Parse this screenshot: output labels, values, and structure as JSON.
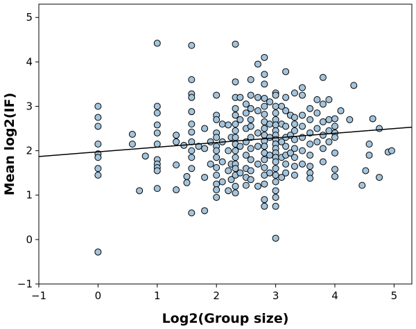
{
  "chart_data": {
    "type": "scatter",
    "title": "",
    "xlabel": "Log2(Group size)",
    "ylabel": "Mean log2(IF)",
    "xlim": [
      -1,
      5.3
    ],
    "ylim": [
      -1,
      5.3
    ],
    "x_ticks": [
      -1,
      0,
      1,
      2,
      3,
      4,
      5
    ],
    "y_ticks": [
      -1,
      0,
      1,
      2,
      3,
      4,
      5
    ],
    "x_tick_labels": [
      "−1",
      "0",
      "1",
      "2",
      "3",
      "4",
      "5"
    ],
    "y_tick_labels": [
      "−1",
      "0",
      "1",
      "2",
      "3",
      "4",
      "5"
    ],
    "grid": false,
    "marker_color": "#a4c4dc",
    "line_color": "#000000",
    "fit_line": {
      "x": [
        -1,
        5.3
      ],
      "y": [
        1.87,
        2.53
      ]
    },
    "points": [
      [
        0,
        3.0
      ],
      [
        0,
        2.75
      ],
      [
        0,
        2.55
      ],
      [
        0,
        2.15
      ],
      [
        0,
        1.93
      ],
      [
        0,
        1.85
      ],
      [
        0,
        1.6
      ],
      [
        0,
        1.45
      ],
      [
        0,
        -0.28
      ],
      [
        0.58,
        2.37
      ],
      [
        0.58,
        2.15
      ],
      [
        0.7,
        1.1
      ],
      [
        0.8,
        1.88
      ],
      [
        1,
        4.42
      ],
      [
        1,
        3.0
      ],
      [
        1,
        2.85
      ],
      [
        1,
        2.58
      ],
      [
        1,
        2.4
      ],
      [
        1,
        2.15
      ],
      [
        1,
        1.8
      ],
      [
        1,
        1.7
      ],
      [
        1,
        1.62
      ],
      [
        1,
        1.55
      ],
      [
        1,
        1.15
      ],
      [
        1.32,
        2.35
      ],
      [
        1.32,
        2.2
      ],
      [
        1.32,
        1.68
      ],
      [
        1.32,
        1.12
      ],
      [
        1.45,
        2.12
      ],
      [
        1.5,
        1.42
      ],
      [
        1.5,
        1.28
      ],
      [
        1.58,
        4.37
      ],
      [
        1.58,
        3.6
      ],
      [
        1.58,
        3.28
      ],
      [
        1.58,
        3.2
      ],
      [
        1.58,
        2.88
      ],
      [
        1.58,
        2.6
      ],
      [
        1.58,
        2.42
      ],
      [
        1.58,
        2.2
      ],
      [
        1.58,
        2.0
      ],
      [
        1.58,
        1.85
      ],
      [
        1.58,
        1.6
      ],
      [
        1.58,
        0.6
      ],
      [
        1.7,
        2.1
      ],
      [
        1.8,
        2.5
      ],
      [
        1.8,
        2.05
      ],
      [
        1.8,
        1.4
      ],
      [
        1.8,
        0.65
      ],
      [
        1.9,
        2.2
      ],
      [
        1.9,
        1.7
      ],
      [
        2,
        3.25
      ],
      [
        2,
        2.8
      ],
      [
        2,
        2.7
      ],
      [
        2,
        2.4
      ],
      [
        2,
        2.3
      ],
      [
        2,
        2.1
      ],
      [
        2,
        2.0
      ],
      [
        2,
        1.85
      ],
      [
        2,
        1.62
      ],
      [
        2,
        1.45
      ],
      [
        2,
        1.25
      ],
      [
        2,
        1.12
      ],
      [
        2,
        0.95
      ],
      [
        2.1,
        2.6
      ],
      [
        2.1,
        2.2
      ],
      [
        2.1,
        1.75
      ],
      [
        2.1,
        1.3
      ],
      [
        2.2,
        2.58
      ],
      [
        2.2,
        2.0
      ],
      [
        2.2,
        1.55
      ],
      [
        2.2,
        1.1
      ],
      [
        2.25,
        2.3
      ],
      [
        2.25,
        1.7
      ],
      [
        2.25,
        1.35
      ],
      [
        2.32,
        4.4
      ],
      [
        2.32,
        3.55
      ],
      [
        2.32,
        3.2
      ],
      [
        2.32,
        2.95
      ],
      [
        2.32,
        2.8
      ],
      [
        2.32,
        2.6
      ],
      [
        2.32,
        2.45
      ],
      [
        2.32,
        2.3
      ],
      [
        2.32,
        2.15
      ],
      [
        2.32,
        2.0
      ],
      [
        2.32,
        1.85
      ],
      [
        2.32,
        1.7
      ],
      [
        2.32,
        1.6
      ],
      [
        2.32,
        1.45
      ],
      [
        2.32,
        1.2
      ],
      [
        2.32,
        1.05
      ],
      [
        2.4,
        3.2
      ],
      [
        2.4,
        2.7
      ],
      [
        2.4,
        2.1
      ],
      [
        2.4,
        1.5
      ],
      [
        2.5,
        3.05
      ],
      [
        2.5,
        2.85
      ],
      [
        2.5,
        2.5
      ],
      [
        2.5,
        2.2
      ],
      [
        2.5,
        1.9
      ],
      [
        2.5,
        1.6
      ],
      [
        2.5,
        1.4
      ],
      [
        2.5,
        1.22
      ],
      [
        2.58,
        3.6
      ],
      [
        2.58,
        3.25
      ],
      [
        2.58,
        2.95
      ],
      [
        2.58,
        2.7
      ],
      [
        2.58,
        2.55
      ],
      [
        2.58,
        2.3
      ],
      [
        2.58,
        2.05
      ],
      [
        2.58,
        1.8
      ],
      [
        2.58,
        1.55
      ],
      [
        2.58,
        1.35
      ],
      [
        2.7,
        3.95
      ],
      [
        2.7,
        3.2
      ],
      [
        2.7,
        2.9
      ],
      [
        2.7,
        2.4
      ],
      [
        2.7,
        2.1
      ],
      [
        2.7,
        1.7
      ],
      [
        2.7,
        1.2
      ],
      [
        2.81,
        4.1
      ],
      [
        2.81,
        3.72
      ],
      [
        2.81,
        3.5
      ],
      [
        2.81,
        3.18
      ],
      [
        2.81,
        3.0
      ],
      [
        2.81,
        2.82
      ],
      [
        2.81,
        2.65
      ],
      [
        2.81,
        2.5
      ],
      [
        2.81,
        2.35
      ],
      [
        2.81,
        2.22
      ],
      [
        2.81,
        2.1
      ],
      [
        2.81,
        1.95
      ],
      [
        2.81,
        1.8
      ],
      [
        2.81,
        1.62
      ],
      [
        2.81,
        1.45
      ],
      [
        2.81,
        1.25
      ],
      [
        2.81,
        0.9
      ],
      [
        2.81,
        0.75
      ],
      [
        2.9,
        3.1
      ],
      [
        2.9,
        2.6
      ],
      [
        2.9,
        2.3
      ],
      [
        2.9,
        1.9
      ],
      [
        2.9,
        1.5
      ],
      [
        3,
        3.3
      ],
      [
        3,
        3.25
      ],
      [
        3,
        3.0
      ],
      [
        3,
        2.85
      ],
      [
        3,
        2.7
      ],
      [
        3,
        2.58
      ],
      [
        3,
        2.45
      ],
      [
        3,
        2.35
      ],
      [
        3,
        2.25
      ],
      [
        3,
        2.15
      ],
      [
        3,
        2.05
      ],
      [
        3,
        1.95
      ],
      [
        3,
        1.85
      ],
      [
        3,
        1.75
      ],
      [
        3,
        1.6
      ],
      [
        3,
        1.45
      ],
      [
        3,
        1.3
      ],
      [
        3,
        1.1
      ],
      [
        3,
        0.95
      ],
      [
        3,
        0.75
      ],
      [
        3,
        0.03
      ],
      [
        3.1,
        3.0
      ],
      [
        3.1,
        2.6
      ],
      [
        3.1,
        2.2
      ],
      [
        3.1,
        1.85
      ],
      [
        3.1,
        1.4
      ],
      [
        3.17,
        3.78
      ],
      [
        3.17,
        3.2
      ],
      [
        3.17,
        2.9
      ],
      [
        3.17,
        2.55
      ],
      [
        3.17,
        2.3
      ],
      [
        3.17,
        2.1
      ],
      [
        3.17,
        1.9
      ],
      [
        3.17,
        1.7
      ],
      [
        3.17,
        1.5
      ],
      [
        3.25,
        2.8
      ],
      [
        3.25,
        2.35
      ],
      [
        3.25,
        1.95
      ],
      [
        3.32,
        3.3
      ],
      [
        3.32,
        2.75
      ],
      [
        3.32,
        2.6
      ],
      [
        3.32,
        2.45
      ],
      [
        3.32,
        2.25
      ],
      [
        3.32,
        2.05
      ],
      [
        3.32,
        1.85
      ],
      [
        3.32,
        1.65
      ],
      [
        3.32,
        1.45
      ],
      [
        3.45,
        3.42
      ],
      [
        3.45,
        3.25
      ],
      [
        3.45,
        2.8
      ],
      [
        3.45,
        2.55
      ],
      [
        3.45,
        2.3
      ],
      [
        3.45,
        2.0
      ],
      [
        3.45,
        1.7
      ],
      [
        3.58,
        2.95
      ],
      [
        3.58,
        2.7
      ],
      [
        3.58,
        2.4
      ],
      [
        3.58,
        2.15
      ],
      [
        3.58,
        1.9
      ],
      [
        3.58,
        1.65
      ],
      [
        3.58,
        1.5
      ],
      [
        3.58,
        1.38
      ],
      [
        3.7,
        3.15
      ],
      [
        3.7,
        2.85
      ],
      [
        3.7,
        2.5
      ],
      [
        3.7,
        2.2
      ],
      [
        3.8,
        3.65
      ],
      [
        3.8,
        3.05
      ],
      [
        3.8,
        2.65
      ],
      [
        3.8,
        2.35
      ],
      [
        3.8,
        2.05
      ],
      [
        3.8,
        1.75
      ],
      [
        3.9,
        3.15
      ],
      [
        3.9,
        2.7
      ],
      [
        3.9,
        2.45
      ],
      [
        3.9,
        2.2
      ],
      [
        4,
        2.72
      ],
      [
        4,
        2.55
      ],
      [
        4,
        2.4
      ],
      [
        4,
        2.3
      ],
      [
        4,
        1.95
      ],
      [
        4,
        1.58
      ],
      [
        4,
        1.42
      ],
      [
        4.1,
        2.9
      ],
      [
        4.25,
        2.7
      ],
      [
        4.32,
        3.47
      ],
      [
        4.46,
        1.22
      ],
      [
        4.52,
        1.55
      ],
      [
        4.58,
        2.15
      ],
      [
        4.58,
        1.9
      ],
      [
        4.64,
        2.72
      ],
      [
        4.75,
        2.5
      ],
      [
        4.75,
        1.4
      ],
      [
        4.9,
        1.97
      ],
      [
        4.96,
        2.0
      ]
    ]
  }
}
